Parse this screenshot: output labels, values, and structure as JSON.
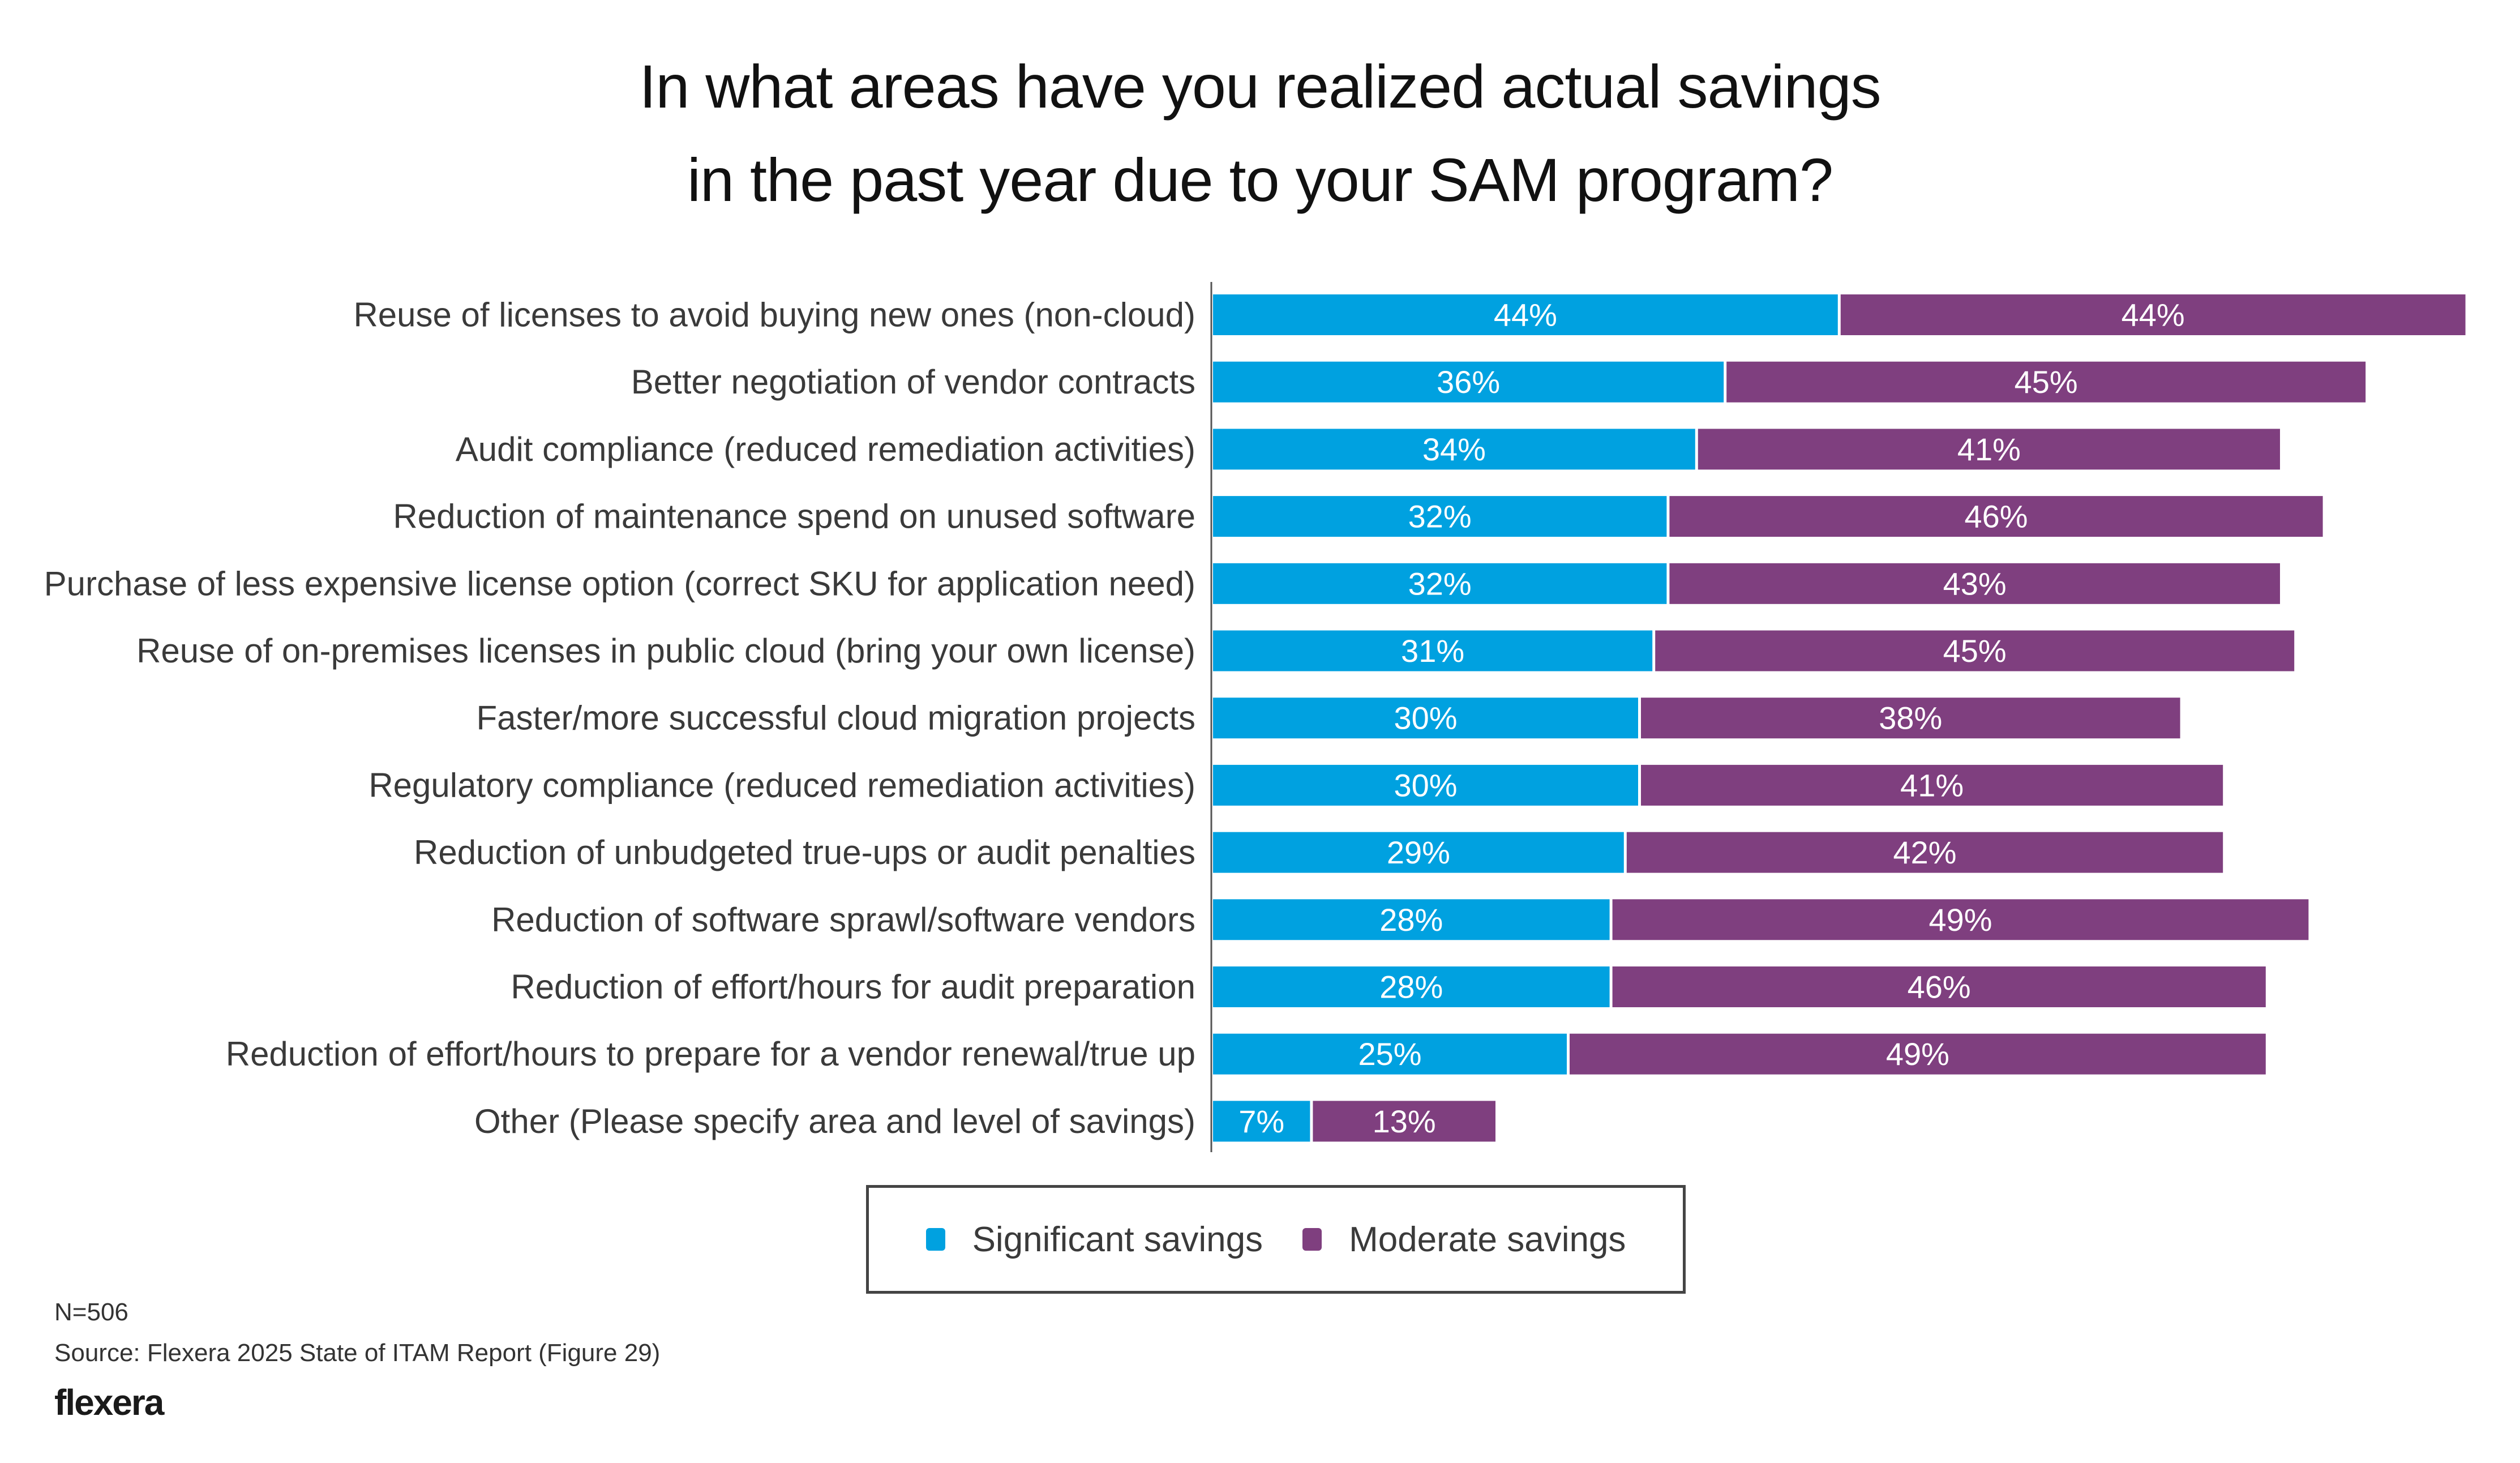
{
  "title_lines": [
    "In what areas have you realized actual savings",
    "in the past year due to your SAM program?"
  ],
  "legend": [
    {
      "label": "Significant savings",
      "color": "#00a1e0"
    },
    {
      "label": "Moderate savings",
      "color": "#7f3f7f"
    }
  ],
  "footer": {
    "n": "N=506",
    "source": "Source: Flexera 2025 State of ITAM Report (Figure 29)",
    "logo": "flexera"
  },
  "chart_data": {
    "type": "bar",
    "orientation": "horizontal",
    "stacked": true,
    "title": "In what areas have you realized actual savings in the past year due to your SAM program?",
    "xlabel": "",
    "ylabel": "",
    "xlim": [
      0,
      100
    ],
    "grid": false,
    "legend_position": "bottom-center",
    "value_suffix": "%",
    "categories": [
      "Reuse of licenses to avoid buying new ones (non-cloud)",
      "Better negotiation of vendor contracts",
      "Audit compliance (reduced remediation activities)",
      "Reduction of maintenance spend on unused software",
      "Purchase of less expensive license option (correct SKU for application need)",
      "Reuse of on-premises licenses in public cloud (bring your own license)",
      "Faster/more successful cloud migration projects",
      "Regulatory compliance (reduced remediation activities)",
      "Reduction of unbudgeted true-ups or audit penalties",
      "Reduction of software sprawl/software vendors",
      "Reduction of effort/hours for audit preparation",
      "Reduction of effort/hours to prepare for a vendor renewal/true up",
      "Other (Please specify area and level of savings)"
    ],
    "series": [
      {
        "name": "Significant savings",
        "color": "#00a1e0",
        "values": [
          44,
          36,
          34,
          32,
          32,
          31,
          30,
          30,
          29,
          28,
          28,
          25,
          7
        ]
      },
      {
        "name": "Moderate savings",
        "color": "#7f3f7f",
        "values": [
          44,
          45,
          41,
          46,
          43,
          45,
          38,
          41,
          42,
          49,
          46,
          49,
          13
        ]
      }
    ]
  }
}
